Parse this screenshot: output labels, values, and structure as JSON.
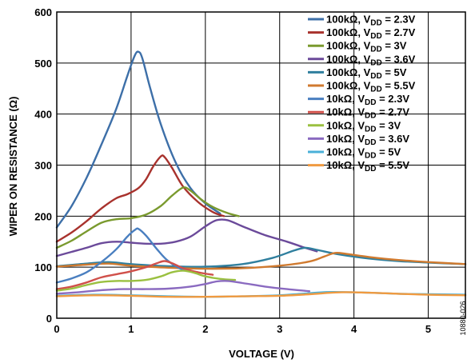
{
  "chart_data": {
    "type": "line",
    "xlabel": "VOLTAGE (V)",
    "ylabel": "WIPER ON RESISTANCE (Ω)",
    "xlim": [
      0,
      5.5
    ],
    "ylim": [
      0,
      600
    ],
    "x_ticks": [
      "0",
      "1",
      "2",
      "3",
      "4",
      "5"
    ],
    "y_ticks": [
      "0",
      "100",
      "200",
      "300",
      "400",
      "500",
      "600"
    ],
    "grid": true,
    "legend_position": "top-right",
    "series": [
      {
        "legend_prefix": "100kΩ, V",
        "legend_sub": "DD",
        "legend_suffix": " = 2.3V",
        "color": "#3d6fa8",
        "points": [
          [
            0,
            178
          ],
          [
            0.2,
            220
          ],
          [
            0.4,
            275
          ],
          [
            0.6,
            340
          ],
          [
            0.8,
            410
          ],
          [
            0.95,
            475
          ],
          [
            1.05,
            515
          ],
          [
            1.1,
            522
          ],
          [
            1.15,
            510
          ],
          [
            1.25,
            455
          ],
          [
            1.4,
            380
          ],
          [
            1.6,
            305
          ],
          [
            1.8,
            255
          ],
          [
            2.0,
            225
          ],
          [
            2.2,
            205
          ]
        ]
      },
      {
        "legend_prefix": "100kΩ, V",
        "legend_sub": "DD",
        "legend_suffix": " = 2.7V",
        "color": "#a8322d",
        "points": [
          [
            0,
            150
          ],
          [
            0.2,
            168
          ],
          [
            0.4,
            190
          ],
          [
            0.6,
            215
          ],
          [
            0.8,
            235
          ],
          [
            0.95,
            243
          ],
          [
            1.1,
            255
          ],
          [
            1.2,
            272
          ],
          [
            1.3,
            298
          ],
          [
            1.4,
            317
          ],
          [
            1.45,
            316
          ],
          [
            1.55,
            295
          ],
          [
            1.7,
            258
          ],
          [
            1.9,
            228
          ],
          [
            2.1,
            208
          ],
          [
            2.25,
            200
          ]
        ]
      },
      {
        "legend_prefix": "100kΩ, V",
        "legend_sub": "DD",
        "legend_suffix": " = 3V",
        "color": "#7a9a2e",
        "points": [
          [
            0,
            138
          ],
          [
            0.2,
            152
          ],
          [
            0.4,
            170
          ],
          [
            0.6,
            187
          ],
          [
            0.8,
            194
          ],
          [
            1.0,
            196
          ],
          [
            1.2,
            203
          ],
          [
            1.4,
            220
          ],
          [
            1.55,
            240
          ],
          [
            1.7,
            256
          ],
          [
            1.8,
            250
          ],
          [
            1.95,
            232
          ],
          [
            2.1,
            218
          ],
          [
            2.3,
            206
          ],
          [
            2.45,
            200
          ]
        ]
      },
      {
        "legend_prefix": "100kΩ, V",
        "legend_sub": "DD",
        "legend_suffix": " = 3.6V",
        "color": "#6b4a9a",
        "points": [
          [
            0,
            122
          ],
          [
            0.2,
            130
          ],
          [
            0.4,
            138
          ],
          [
            0.6,
            147
          ],
          [
            0.8,
            150
          ],
          [
            1.0,
            148
          ],
          [
            1.2,
            146
          ],
          [
            1.4,
            146
          ],
          [
            1.6,
            150
          ],
          [
            1.8,
            160
          ],
          [
            2.0,
            180
          ],
          [
            2.15,
            192
          ],
          [
            2.3,
            192
          ],
          [
            2.5,
            180
          ],
          [
            2.8,
            163
          ],
          [
            3.1,
            150
          ],
          [
            3.3,
            140
          ],
          [
            3.5,
            131
          ]
        ]
      },
      {
        "legend_prefix": "100kΩ, V",
        "legend_sub": "DD",
        "legend_suffix": " = 5V",
        "color": "#2f7f9e",
        "points": [
          [
            0,
            102
          ],
          [
            0.4,
            107
          ],
          [
            0.7,
            110
          ],
          [
            1.0,
            106
          ],
          [
            1.5,
            102
          ],
          [
            2.0,
            101
          ],
          [
            2.5,
            106
          ],
          [
            2.9,
            118
          ],
          [
            3.2,
            133
          ],
          [
            3.35,
            138
          ],
          [
            3.5,
            134
          ],
          [
            3.8,
            125
          ],
          [
            4.2,
            117
          ],
          [
            4.6,
            112
          ],
          [
            5.0,
            109
          ],
          [
            5.5,
            106
          ]
        ]
      },
      {
        "legend_prefix": "100kΩ, V",
        "legend_sub": "DD",
        "legend_suffix": " = 5.5V",
        "color": "#d07a2f",
        "points": [
          [
            0,
            101
          ],
          [
            0.4,
            105
          ],
          [
            0.7,
            107
          ],
          [
            1.0,
            103
          ],
          [
            1.5,
            99
          ],
          [
            2.0,
            97
          ],
          [
            2.5,
            98
          ],
          [
            3.0,
            103
          ],
          [
            3.4,
            111
          ],
          [
            3.6,
            121
          ],
          [
            3.75,
            128
          ],
          [
            3.9,
            126
          ],
          [
            4.2,
            120
          ],
          [
            4.6,
            114
          ],
          [
            5.0,
            110
          ],
          [
            5.5,
            106
          ]
        ]
      },
      {
        "legend_prefix": "10kΩ, V",
        "legend_sub": "DD",
        "legend_suffix": " = 2.3V",
        "color": "#4a7fc0",
        "points": [
          [
            0,
            70
          ],
          [
            0.2,
            78
          ],
          [
            0.4,
            90
          ],
          [
            0.6,
            110
          ],
          [
            0.8,
            135
          ],
          [
            0.95,
            160
          ],
          [
            1.05,
            173
          ],
          [
            1.1,
            175
          ],
          [
            1.2,
            162
          ],
          [
            1.35,
            135
          ],
          [
            1.5,
            112
          ],
          [
            1.7,
            95
          ],
          [
            1.9,
            90
          ]
        ]
      },
      {
        "legend_prefix": "10kΩ, V",
        "legend_sub": "DD",
        "legend_suffix": " = 2.7V",
        "color": "#d0504a",
        "points": [
          [
            0,
            57
          ],
          [
            0.2,
            62
          ],
          [
            0.4,
            70
          ],
          [
            0.6,
            80
          ],
          [
            0.8,
            86
          ],
          [
            1.0,
            92
          ],
          [
            1.2,
            100
          ],
          [
            1.35,
            108
          ],
          [
            1.45,
            112
          ],
          [
            1.55,
            108
          ],
          [
            1.7,
            98
          ],
          [
            1.9,
            90
          ],
          [
            2.1,
            85
          ]
        ]
      },
      {
        "legend_prefix": "10kΩ, V",
        "legend_sub": "DD",
        "legend_suffix": " = 3V",
        "color": "#9ac040",
        "points": [
          [
            0,
            54
          ],
          [
            0.2,
            58
          ],
          [
            0.4,
            65
          ],
          [
            0.6,
            71
          ],
          [
            0.8,
            73
          ],
          [
            1.0,
            73
          ],
          [
            1.2,
            75
          ],
          [
            1.4,
            82
          ],
          [
            1.55,
            90
          ],
          [
            1.7,
            93
          ],
          [
            1.85,
            89
          ],
          [
            2.0,
            82
          ],
          [
            2.2,
            77
          ],
          [
            2.4,
            75
          ]
        ]
      },
      {
        "legend_prefix": "10kΩ, V",
        "legend_sub": "DD",
        "legend_suffix": " = 3.6V",
        "color": "#8a6ac0",
        "points": [
          [
            0,
            48
          ],
          [
            0.3,
            51
          ],
          [
            0.6,
            55
          ],
          [
            0.9,
            57
          ],
          [
            1.2,
            57
          ],
          [
            1.5,
            58
          ],
          [
            1.8,
            62
          ],
          [
            2.0,
            67
          ],
          [
            2.15,
            72
          ],
          [
            2.3,
            73
          ],
          [
            2.5,
            69
          ],
          [
            2.8,
            62
          ],
          [
            3.1,
            57
          ],
          [
            3.4,
            53
          ]
        ]
      },
      {
        "legend_prefix": "10kΩ, V",
        "legend_sub": "DD",
        "legend_suffix": " = 5V",
        "color": "#4ab0d8",
        "points": [
          [
            0,
            44
          ],
          [
            0.5,
            46
          ],
          [
            1.0,
            45
          ],
          [
            1.5,
            43
          ],
          [
            2.0,
            42
          ],
          [
            2.5,
            43
          ],
          [
            3.0,
            45
          ],
          [
            3.3,
            48
          ],
          [
            3.6,
            51
          ],
          [
            3.9,
            51
          ],
          [
            4.2,
            50
          ],
          [
            4.6,
            48
          ],
          [
            5.0,
            47
          ],
          [
            5.5,
            46
          ]
        ]
      },
      {
        "legend_prefix": "10kΩ, V",
        "legend_sub": "DD",
        "legend_suffix": " = 5.5V",
        "color": "#f09a40",
        "points": [
          [
            0,
            43
          ],
          [
            0.5,
            45
          ],
          [
            1.0,
            44
          ],
          [
            1.5,
            42
          ],
          [
            2.0,
            42
          ],
          [
            2.5,
            43
          ],
          [
            3.0,
            44
          ],
          [
            3.4,
            47
          ],
          [
            3.7,
            50
          ],
          [
            3.9,
            51
          ],
          [
            4.2,
            50
          ],
          [
            4.6,
            48
          ],
          [
            5.0,
            46
          ],
          [
            5.5,
            45
          ]
        ]
      }
    ]
  },
  "figure_id": "10880-026"
}
